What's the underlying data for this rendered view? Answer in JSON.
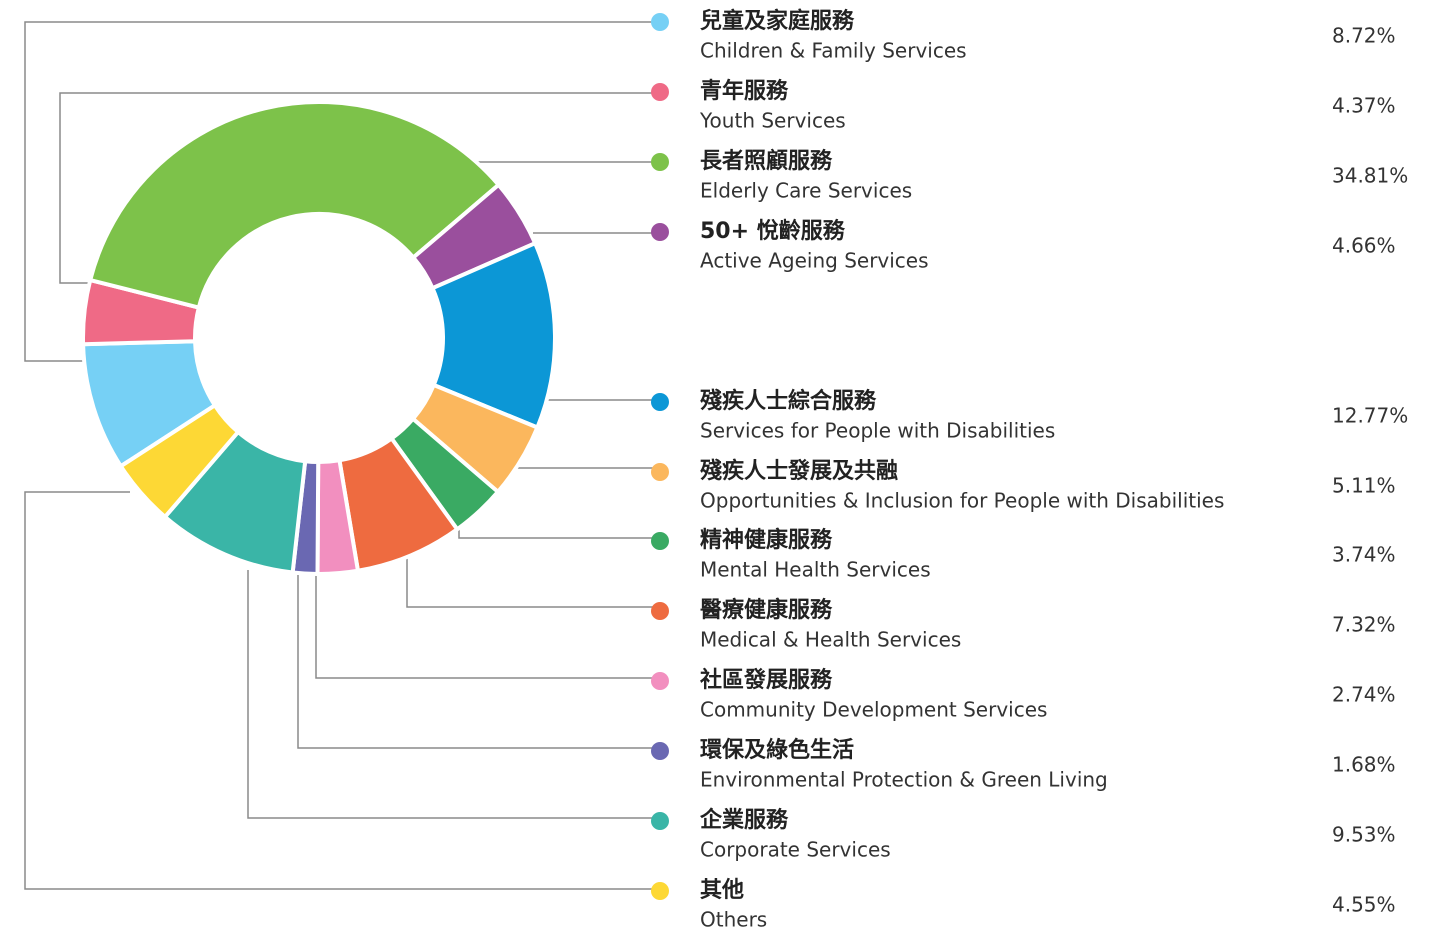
{
  "chart_data": {
    "type": "donut",
    "labels_zh": [
      "兒童及家庭服務",
      "青年服務",
      "長者照顧服務",
      "50+ 悅齡服務",
      "殘疾人士綜合服務",
      "殘疾人士發展及共融",
      "精神健康服務",
      "醫療健康服務",
      "社區發展服務",
      "環保及綠色生活",
      "企業服務",
      "其他"
    ],
    "categories": [
      "Children & Family Services",
      "Youth Services",
      "Elderly Care Services",
      "Active Ageing Services",
      "Services for People with Disabilities",
      "Opportunities & Inclusion for People with Disabilities",
      "Mental Health Services",
      "Medical & Health Services",
      "Community Development Services",
      "Environmental Protection & Green Living",
      "Corporate Services",
      "Others"
    ],
    "values": [
      8.72,
      4.37,
      34.81,
      4.66,
      12.77,
      5.11,
      3.74,
      7.32,
      2.74,
      1.68,
      9.53,
      4.55
    ],
    "value_labels": [
      "8.72%",
      "4.37%",
      "34.81%",
      "4.66%",
      "12.77%",
      "5.11%",
      "3.74%",
      "7.32%",
      "2.74%",
      "1.68%",
      "9.53%",
      "4.55%"
    ],
    "colors": [
      "#76d0f5",
      "#ef6a86",
      "#7dc24a",
      "#9a4f9d",
      "#0c97d6",
      "#fbb75d",
      "#3aaa63",
      "#ee6b40",
      "#f28fbf",
      "#6a68b2",
      "#3ab5a7",
      "#fdd835"
    ]
  }
}
